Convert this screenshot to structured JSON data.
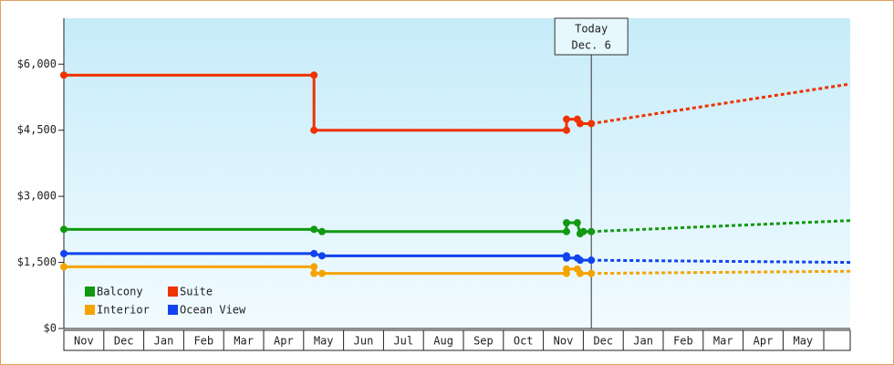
{
  "chart_data": {
    "type": "line",
    "xlim": [
      0,
      19.68
    ],
    "xticks": [
      {
        "value": 0,
        "label": "Nov"
      },
      {
        "value": 1,
        "label": "Dec"
      },
      {
        "value": 2,
        "label": "Jan"
      },
      {
        "value": 3,
        "label": "Feb"
      },
      {
        "value": 4,
        "label": "Mar"
      },
      {
        "value": 5,
        "label": "Apr"
      },
      {
        "value": 6,
        "label": "May"
      },
      {
        "value": 7,
        "label": "Jun"
      },
      {
        "value": 8,
        "label": "Jul"
      },
      {
        "value": 9,
        "label": "Aug"
      },
      {
        "value": 10,
        "label": "Sep"
      },
      {
        "value": 11,
        "label": "Oct"
      },
      {
        "value": 12,
        "label": "Nov"
      },
      {
        "value": 13,
        "label": "Dec"
      },
      {
        "value": 14,
        "label": "Jan"
      },
      {
        "value": 15,
        "label": "Feb"
      },
      {
        "value": 16,
        "label": "Mar"
      },
      {
        "value": 17,
        "label": "Apr"
      },
      {
        "value": 18,
        "label": "May"
      }
    ],
    "ylim": [
      0,
      7000
    ],
    "yticks": [
      {
        "value": 0,
        "label": "$0"
      },
      {
        "value": 1500,
        "label": "$1,500"
      },
      {
        "value": 3000,
        "label": "$3,000"
      },
      {
        "value": 4500,
        "label": "$4,500"
      },
      {
        "value": 6000,
        "label": "$6,000"
      }
    ],
    "annotation": {
      "lines": [
        "Today",
        "Dec. 6"
      ],
      "x": 13.2
    },
    "legend": "lower left",
    "series": [
      {
        "name": "Balcony",
        "color": "#119911",
        "x": [
          0,
          6.26,
          6.46,
          12.58,
          12.58,
          12.85,
          12.92,
          13.0,
          13.2
        ],
        "values": [
          2250,
          2250,
          2200,
          2200,
          2400,
          2400,
          2150,
          2200,
          2200
        ],
        "forecast": {
          "x": [
            13.2,
            19.68
          ],
          "values": [
            2200,
            2450
          ]
        }
      },
      {
        "name": "Suite",
        "color": "#ee3300",
        "x": [
          0,
          6.26,
          6.26,
          12.58,
          12.58,
          12.85,
          12.92,
          13.2
        ],
        "values": [
          5750,
          5750,
          4500,
          4500,
          4750,
          4750,
          4650,
          4650
        ],
        "forecast": {
          "x": [
            13.2,
            19.68
          ],
          "values": [
            4650,
            5550
          ]
        }
      },
      {
        "name": "Interior",
        "color": "#f5a300",
        "x": [
          0,
          6.26,
          6.26,
          6.46,
          12.58,
          12.58,
          12.85,
          12.92,
          13.2
        ],
        "values": [
          1400,
          1400,
          1250,
          1250,
          1250,
          1350,
          1350,
          1250,
          1250
        ],
        "forecast": {
          "x": [
            13.2,
            19.68
          ],
          "values": [
            1250,
            1300
          ]
        }
      },
      {
        "name": "Ocean View",
        "color": "#1144ee",
        "x": [
          0,
          6.26,
          6.46,
          12.58,
          12.58,
          12.85,
          12.92,
          13.2
        ],
        "values": [
          1700,
          1700,
          1650,
          1650,
          1600,
          1600,
          1550,
          1550
        ],
        "forecast": {
          "x": [
            13.2,
            19.68
          ],
          "values": [
            1550,
            1500
          ]
        }
      }
    ]
  }
}
